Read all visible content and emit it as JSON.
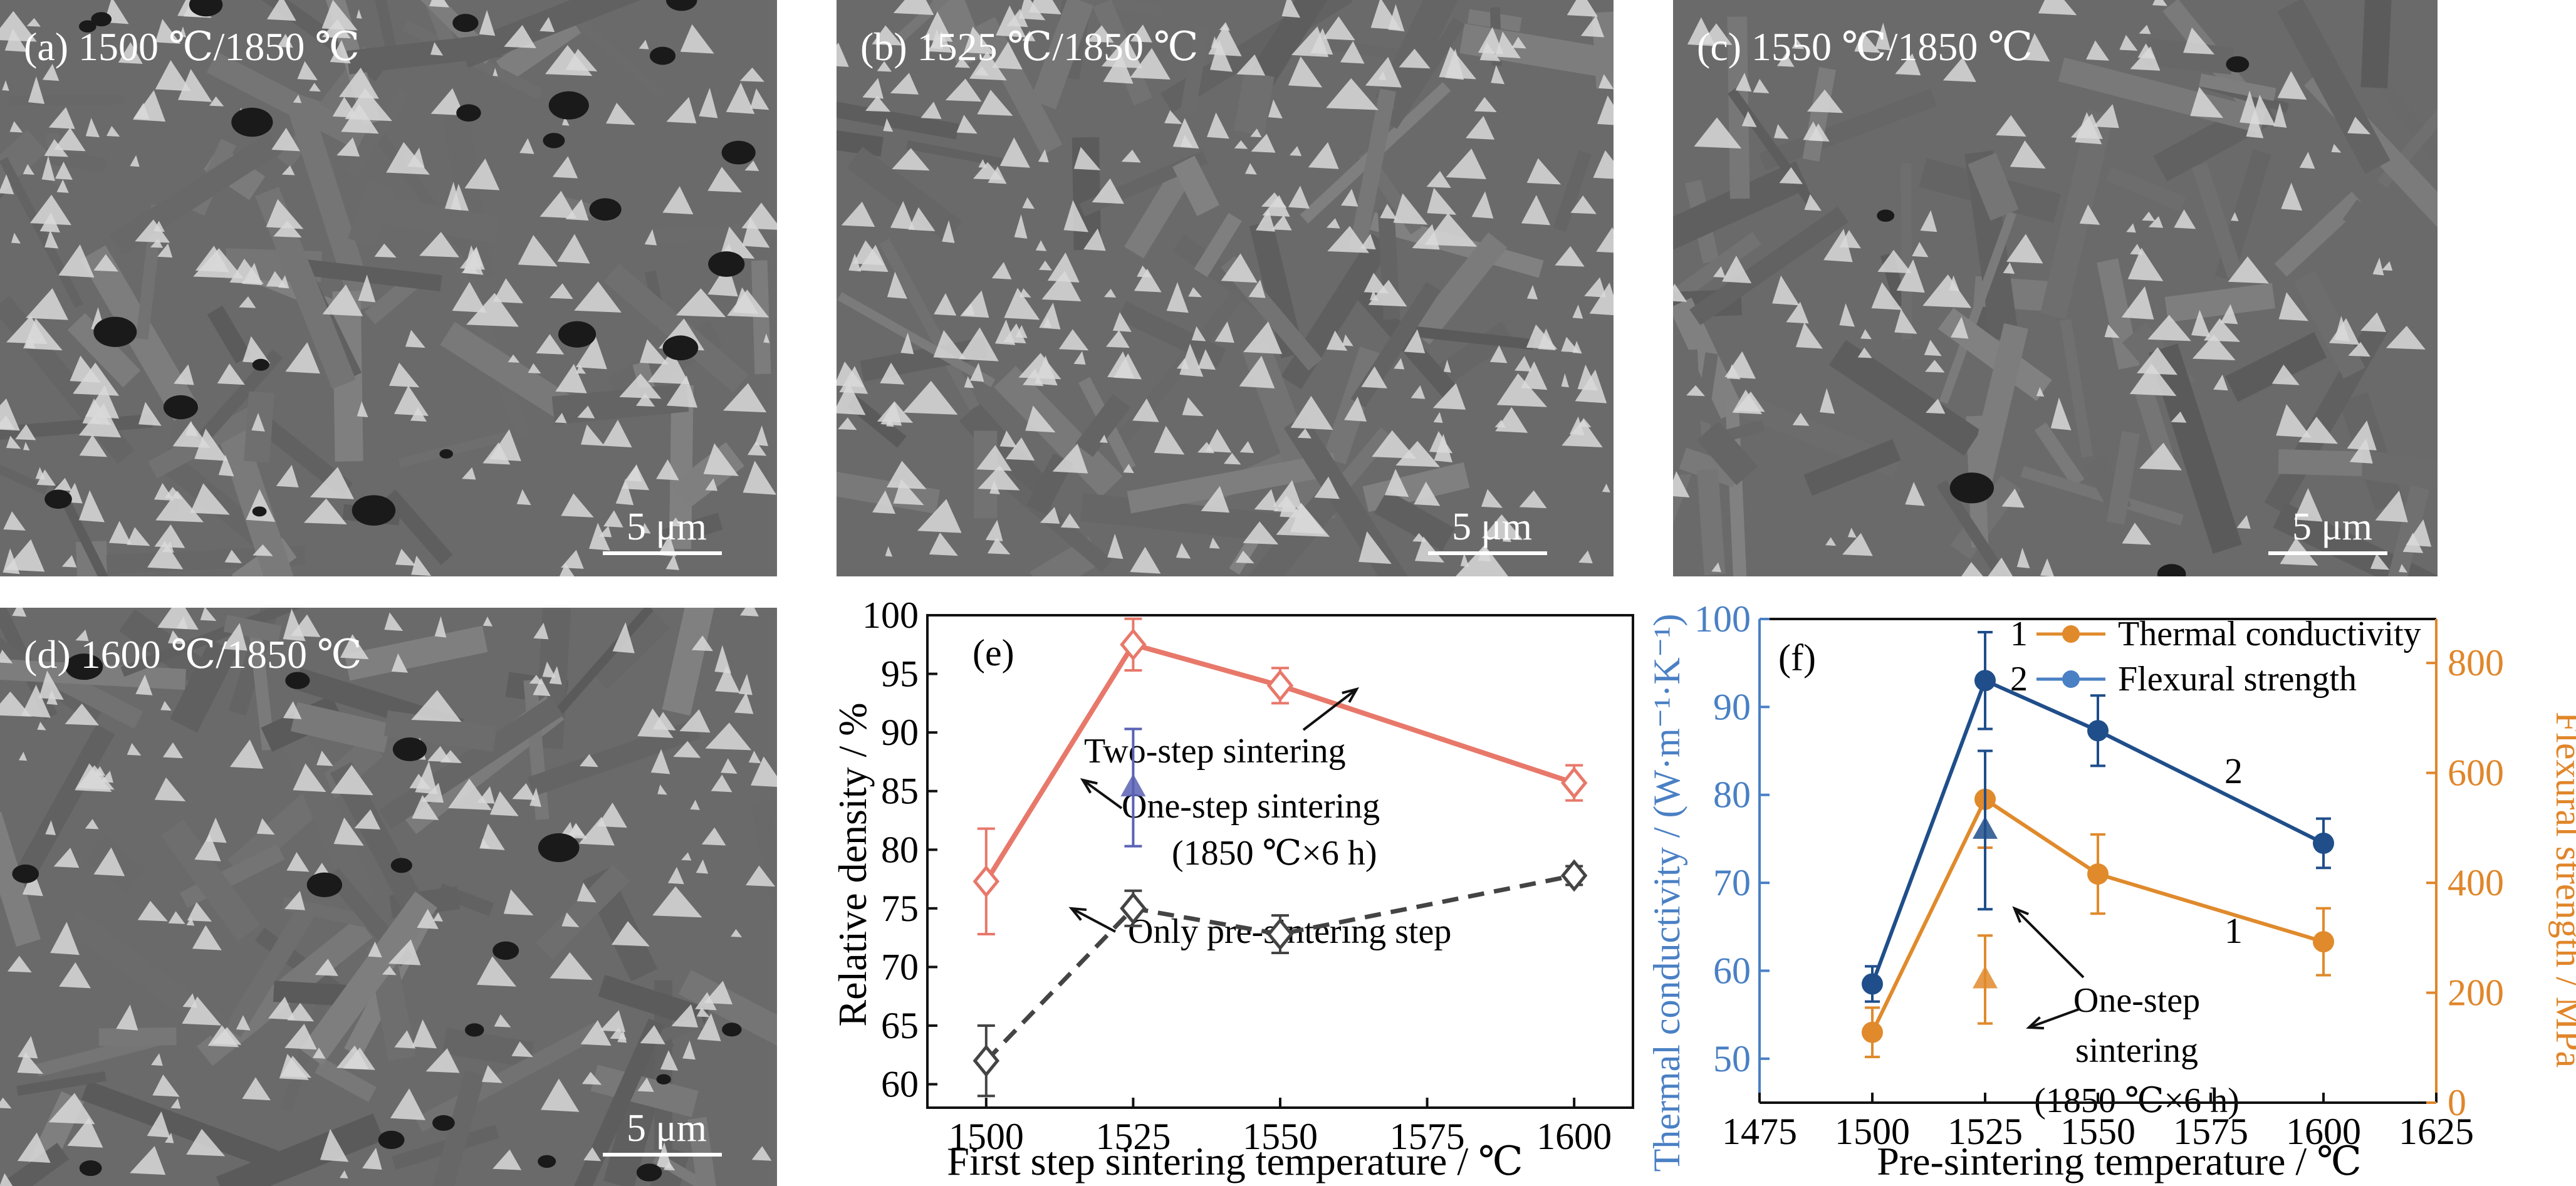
{
  "micrographs": [
    {
      "label": "(a) 1500 ℃/1850 ℃",
      "scale": "5 μm"
    },
    {
      "label": "(b) 1525 ℃/1850 ℃",
      "scale": "5 μm"
    },
    {
      "label": "(c) 1550 ℃/1850 ℃",
      "scale": "5 μm"
    },
    {
      "label": "(d) 1600 ℃/1850 ℃",
      "scale": "5 μm"
    }
  ],
  "colors": {
    "two_step": "#e8786a",
    "pre_sinter": "#444444",
    "one_step_e": "#5a62b4",
    "thermal": "#e08a2c",
    "flexural": "#1f4e8a",
    "left_axis_f": "#4a80c4",
    "right_axis_f": "#e0862a",
    "micrograph_matrix": "#6a6a6a",
    "micrograph_phase": "#d9d9d9"
  },
  "chart_data": [
    {
      "type": "line",
      "panel_label": "(e)",
      "xlabel": "First step sintering temperature / ℃",
      "ylabel": "Relative density / %",
      "xlim": [
        1490,
        1610
      ],
      "ylim": [
        58,
        100
      ],
      "xticks": [
        1500,
        1525,
        1550,
        1575,
        1600
      ],
      "yticks": [
        60,
        65,
        70,
        75,
        80,
        85,
        90,
        95,
        100
      ],
      "series": [
        {
          "name": "Two-step sintering",
          "x": [
            1500,
            1525,
            1550,
            1600
          ],
          "y": [
            77.3,
            97.5,
            94.0,
            85.7
          ],
          "err": [
            4.5,
            2.2,
            1.5,
            1.5
          ],
          "style": "solid",
          "marker": "diamond-open"
        },
        {
          "name": "Only pre-sintering step",
          "x": [
            1500,
            1525,
            1550,
            1600
          ],
          "y": [
            62.0,
            75.0,
            72.8,
            77.8
          ],
          "err": [
            3.0,
            1.5,
            1.6,
            0.8
          ],
          "style": "dashed",
          "marker": "diamond-open"
        },
        {
          "name": "One-step sintering",
          "x": [
            1525
          ],
          "y": [
            85.3
          ],
          "err": [
            5.0
          ],
          "style": "none",
          "marker": "triangle"
        }
      ],
      "annotations": [
        {
          "text": "Two-step sintering"
        },
        {
          "text": "One-step sintering"
        },
        {
          "text": "(1850 ℃×6 h)"
        },
        {
          "text": "Only pre-sintering step"
        }
      ]
    },
    {
      "type": "line",
      "panel_label": "(f)",
      "xlabel": "Pre-sintering temperature / ℃",
      "ylabel_left": "Thermal conductivity / (W·m⁻¹·K⁻¹)",
      "ylabel_right": "Flexural strength / MPa",
      "xlim": [
        1475,
        1625
      ],
      "ylim_left": [
        45,
        100
      ],
      "ylim_right": [
        0,
        880
      ],
      "xticks": [
        1475,
        1500,
        1525,
        1550,
        1575,
        1600,
        1625
      ],
      "xtick_labels": [
        "1475",
        "1500",
        "1525",
        "1550",
        "1575",
        "1600",
        "1625"
      ],
      "yticks_left": [
        50,
        60,
        70,
        80,
        90,
        100
      ],
      "yticks_right": [
        0,
        200,
        400,
        600,
        800
      ],
      "series": [
        {
          "name": "Thermal conductivity",
          "x": [
            1500,
            1525,
            1550,
            1600
          ],
          "y": [
            53,
            79.5,
            71,
            63.3
          ],
          "err": [
            2.8,
            5.5,
            4.5,
            3.8
          ],
          "axis": "left",
          "legend_index": "1"
        },
        {
          "name": "Flexural strength",
          "x": [
            1500,
            1525,
            1550,
            1600
          ],
          "y": [
            58.5,
            93,
            87.3,
            74.5
          ],
          "err": [
            2.0,
            5.5,
            4.0,
            2.8
          ],
          "axis": "left",
          "legend_index": "2"
        },
        {
          "name": "One-step sintering",
          "x": [
            1525,
            1525
          ],
          "y": [
            76,
            59
          ],
          "err": [
            9,
            5
          ],
          "axis": "left",
          "marker": "triangle"
        }
      ],
      "series_labels": [
        "1",
        "2"
      ],
      "annotations": [
        {
          "text": "One-step"
        },
        {
          "text": "sintering"
        },
        {
          "text": "(1850 ℃×6 h)"
        }
      ]
    }
  ]
}
